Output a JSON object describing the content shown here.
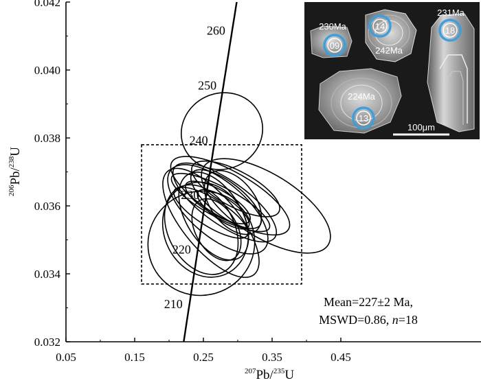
{
  "chart_data": {
    "type": "scatter",
    "subtype": "concordia-diagram",
    "xlabel": {
      "sup": "207",
      "main": "Pb/",
      "sup2": "235",
      "end": "U"
    },
    "ylabel": {
      "sup": "206",
      "main": "Pb/",
      "sup2": "238",
      "end": "U"
    },
    "xlim": [
      0.05,
      0.5
    ],
    "ylim": [
      0.032,
      0.042
    ],
    "x_ticks": [
      "0.05",
      "0.15",
      "0.25",
      "0.35",
      "0.45"
    ],
    "x_tick_values": [
      0.05,
      0.15,
      0.25,
      0.35,
      0.45
    ],
    "y_ticks": [
      "0.032",
      "0.034",
      "0.036",
      "0.038",
      "0.040",
      "0.042"
    ],
    "y_tick_values": [
      0.032,
      0.034,
      0.036,
      0.038,
      0.04,
      0.042
    ],
    "concordia_ages": [
      {
        "label": "210",
        "x": 0.2299,
        "y": 0.03313
      },
      {
        "label": "220",
        "x": 0.2415,
        "y": 0.03471
      },
      {
        "label": "230",
        "x": 0.2531,
        "y": 0.0363
      },
      {
        "label": "240",
        "x": 0.2649,
        "y": 0.03792
      },
      {
        "label": "250",
        "x": 0.2768,
        "y": 0.03955
      },
      {
        "label": "260",
        "x": 0.2889,
        "y": 0.04117
      }
    ],
    "concordia_labels_shown": [
      {
        "text": "210",
        "age": 210
      },
      {
        "text": "220",
        "age": 220
      },
      {
        "text": "230",
        "age": 230
      },
      {
        "text": "240",
        "age": 240
      },
      {
        "text": "250",
        "age": 250
      },
      {
        "text": "260",
        "age": 260
      }
    ],
    "ellipses": [
      {
        "cx": 0.277,
        "cy": 0.0382,
        "a": 0.06,
        "b": 0.0062,
        "angle": 24
      },
      {
        "cx": 0.247,
        "cy": 0.0349,
        "a": 0.078,
        "b": 0.0085,
        "angle": 22
      },
      {
        "cx": 0.253,
        "cy": 0.0353,
        "a": 0.06,
        "b": 0.008,
        "angle": 26
      },
      {
        "cx": 0.247,
        "cy": 0.0353,
        "a": 0.048,
        "b": 0.0078,
        "angle": 28
      },
      {
        "cx": 0.265,
        "cy": 0.0357,
        "a": 0.04,
        "b": 0.008,
        "angle": 32
      },
      {
        "cx": 0.261,
        "cy": 0.0355,
        "a": 0.04,
        "b": 0.011,
        "angle": 40
      },
      {
        "cx": 0.271,
        "cy": 0.0359,
        "a": 0.04,
        "b": 0.01,
        "angle": 50
      },
      {
        "cx": 0.281,
        "cy": 0.0361,
        "a": 0.032,
        "b": 0.01,
        "angle": 55
      },
      {
        "cx": 0.289,
        "cy": 0.0363,
        "a": 0.034,
        "b": 0.011,
        "angle": 60
      },
      {
        "cx": 0.275,
        "cy": 0.0361,
        "a": 0.022,
        "b": 0.009,
        "angle": 62
      },
      {
        "cx": 0.293,
        "cy": 0.0361,
        "a": 0.032,
        "b": 0.006,
        "angle": 38
      },
      {
        "cx": 0.297,
        "cy": 0.0365,
        "a": 0.026,
        "b": 0.008,
        "angle": 62
      },
      {
        "cx": 0.261,
        "cy": 0.0358,
        "a": 0.02,
        "b": 0.007,
        "angle": 58
      },
      {
        "cx": 0.279,
        "cy": 0.0359,
        "a": 0.016,
        "b": 0.005,
        "angle": 55
      },
      {
        "cx": 0.269,
        "cy": 0.0353,
        "a": 0.03,
        "b": 0.0055,
        "angle": 30
      },
      {
        "cx": 0.341,
        "cy": 0.036,
        "a": 0.046,
        "b": 0.012,
        "angle": 58
      },
      {
        "cx": 0.271,
        "cy": 0.0361,
        "a": 0.018,
        "b": 0.006,
        "angle": 60
      },
      {
        "cx": 0.283,
        "cy": 0.0362,
        "a": 0.024,
        "b": 0.007,
        "angle": 52
      }
    ],
    "selection_box": {
      "x1": 0.16,
      "x2": 0.393,
      "y1": 0.0337,
      "y2": 0.0378
    },
    "result": {
      "line1": "Mean=227±2 Ma,",
      "line2_prefix": "MSWD=0.86, ",
      "line2_italic": "n",
      "line2_suffix": "=18"
    },
    "inset": {
      "spots": [
        {
          "id": "09",
          "age": "230Ma"
        },
        {
          "id": "14",
          "age": "242Ma"
        },
        {
          "id": "18",
          "age": "231Ma"
        },
        {
          "id": "13",
          "age": "224Ma"
        }
      ],
      "scale_bar": "100μm"
    }
  }
}
